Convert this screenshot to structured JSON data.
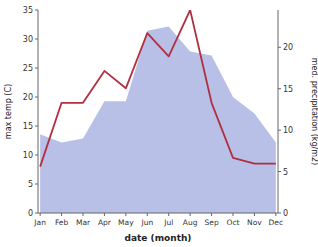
{
  "chart_data": {
    "type": "line",
    "xlabel": "date (month)",
    "ylabel": "max temp (C)",
    "y2label": "med. precipitation (kg/m2)",
    "categories": [
      "Jan",
      "Feb",
      "Mar",
      "Apr",
      "May",
      "Jun",
      "Jul",
      "Aug",
      "Sep",
      "Oct",
      "Nov",
      "Dec"
    ],
    "series": [
      {
        "type": "area",
        "axis": "y2",
        "color": "#b8c0e8",
        "values": [
          9.5,
          8.5,
          9.0,
          13.5,
          13.5,
          22.0,
          22.5,
          19.5,
          19.0,
          14.0,
          12.0,
          8.5
        ]
      },
      {
        "type": "line",
        "color": "#b03040",
        "values": [
          8.0,
          19.0,
          19.0,
          24.5,
          21.5,
          31.0,
          27.0,
          35.0,
          19.0,
          9.5,
          8.5,
          8.5
        ]
      }
    ],
    "ylim": [
      0,
      35
    ],
    "yticks": [
      0,
      5,
      10,
      15,
      20,
      25,
      30,
      35
    ],
    "y2lim": [
      0,
      24.5
    ],
    "y2ticks": [
      0,
      5,
      10,
      15,
      20
    ],
    "grid": false
  }
}
